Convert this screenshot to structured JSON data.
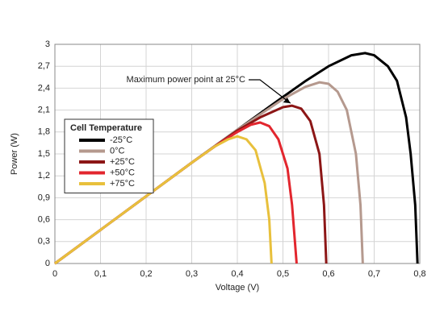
{
  "chart_data": {
    "type": "line",
    "x_label": "Voltage (V)",
    "y_label": "Power (W)",
    "annotation": "Maximum power point at 25°C",
    "legend_title": "Cell Temperature",
    "xlim": [
      0,
      0.8
    ],
    "ylim": [
      0,
      3
    ],
    "grid": true,
    "legend": "upper left",
    "xticks": [
      0,
      {
        "value": 0.1,
        "label": "0,1"
      },
      {
        "value": 0.2,
        "label": "0,2"
      },
      {
        "value": 0.3,
        "label": "0,3"
      },
      {
        "value": 0.4,
        "label": "0,4"
      },
      {
        "value": 0.5,
        "label": "0,5"
      },
      {
        "value": 0.6,
        "label": "0,6"
      },
      {
        "value": 0.7,
        "label": "0,7"
      },
      {
        "value": 0.8,
        "label": "0,8"
      }
    ],
    "yticks": [
      0,
      {
        "value": 0.3,
        "label": "0,3"
      },
      {
        "value": 0.6,
        "label": "0,6"
      },
      {
        "value": 0.9,
        "label": "0,9"
      },
      {
        "value": 1.2,
        "label": "1,2"
      },
      {
        "value": 1.5,
        "label": "1,5"
      },
      {
        "value": 1.8,
        "label": "1,8"
      },
      {
        "value": 2.1,
        "label": "2,1"
      },
      {
        "value": 2.4,
        "label": "2,4"
      },
      {
        "value": 2.7,
        "label": "2,7"
      },
      3
    ],
    "series": [
      {
        "name": "-25°C",
        "color": "#000000",
        "x": [
          0,
          0.1,
          0.2,
          0.3,
          0.4,
          0.5,
          0.55,
          0.6,
          0.65,
          0.68,
          0.7,
          0.73,
          0.75,
          0.77,
          0.78,
          0.79,
          0.795
        ],
        "values": [
          0,
          0.46,
          0.92,
          1.38,
          1.83,
          2.28,
          2.5,
          2.7,
          2.85,
          2.88,
          2.85,
          2.7,
          2.5,
          2.0,
          1.5,
          0.8,
          0
        ]
      },
      {
        "name": "0°C",
        "color": "#b5998e",
        "x": [
          0,
          0.1,
          0.2,
          0.3,
          0.4,
          0.5,
          0.55,
          0.58,
          0.6,
          0.62,
          0.64,
          0.66,
          0.67,
          0.675
        ],
        "values": [
          0,
          0.46,
          0.92,
          1.38,
          1.83,
          2.25,
          2.42,
          2.48,
          2.46,
          2.35,
          2.1,
          1.5,
          0.8,
          0
        ]
      },
      {
        "name": "+25°C",
        "color": "#8c1616",
        "x": [
          0,
          0.1,
          0.2,
          0.3,
          0.4,
          0.45,
          0.5,
          0.52,
          0.54,
          0.56,
          0.58,
          0.59,
          0.595
        ],
        "values": [
          0,
          0.46,
          0.92,
          1.38,
          1.82,
          2.0,
          2.14,
          2.16,
          2.12,
          1.95,
          1.5,
          0.8,
          0
        ]
      },
      {
        "name": "+50°C",
        "color": "#e2262e",
        "x": [
          0,
          0.1,
          0.2,
          0.3,
          0.35,
          0.4,
          0.43,
          0.45,
          0.47,
          0.49,
          0.51,
          0.52,
          0.53
        ],
        "values": [
          0,
          0.46,
          0.92,
          1.38,
          1.6,
          1.8,
          1.9,
          1.93,
          1.88,
          1.7,
          1.3,
          0.8,
          0
        ]
      },
      {
        "name": "+75°C",
        "color": "#e8c03c",
        "x": [
          0,
          0.1,
          0.2,
          0.3,
          0.35,
          0.38,
          0.4,
          0.42,
          0.44,
          0.46,
          0.47,
          0.475
        ],
        "values": [
          0,
          0.46,
          0.92,
          1.38,
          1.6,
          1.7,
          1.74,
          1.7,
          1.55,
          1.1,
          0.6,
          0
        ]
      }
    ]
  }
}
